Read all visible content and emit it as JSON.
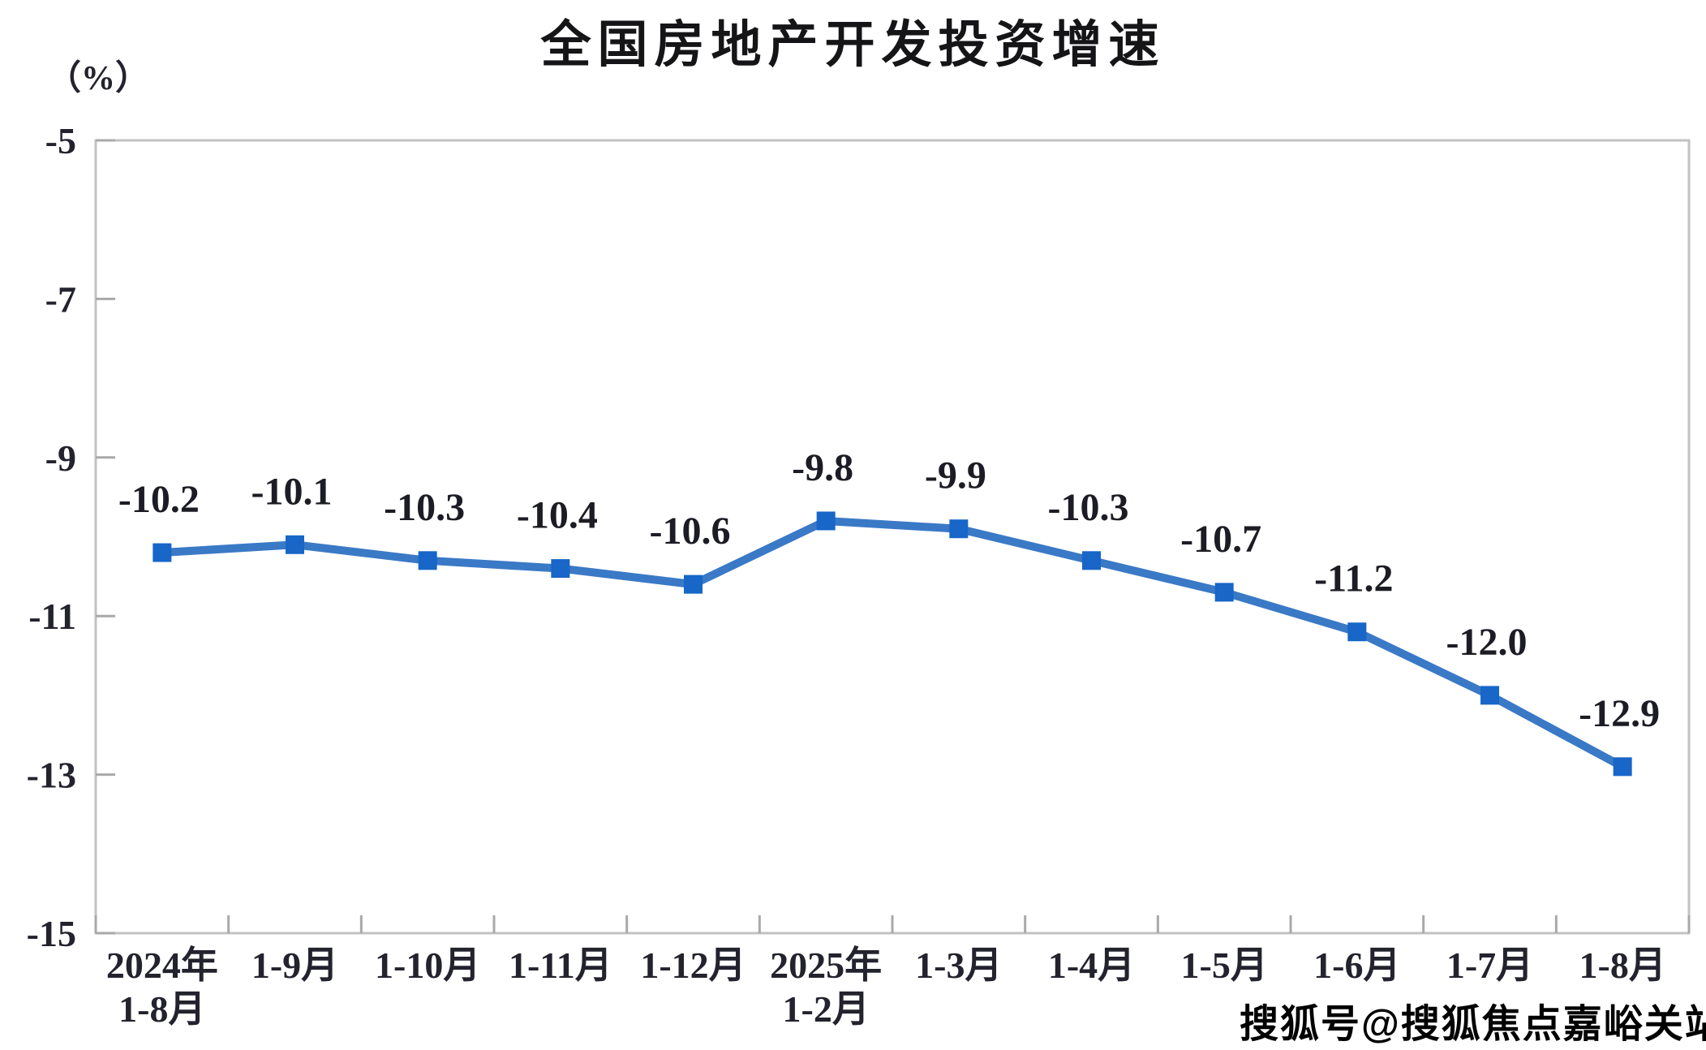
{
  "title": "全国房地产开发投资增速",
  "y_axis_unit_label": "（%）",
  "watermark": "搜狐号@搜狐焦点嘉峪关站",
  "chart_data": {
    "type": "line",
    "title": "全国房地产开发投资增速",
    "ylabel": "（%）",
    "categories": [
      [
        "2024年",
        "1-8月"
      ],
      [
        "1-9月"
      ],
      [
        "1-10月"
      ],
      [
        "1-11月"
      ],
      [
        "1-12月"
      ],
      [
        "2025年",
        "1-2月"
      ],
      [
        "1-3月"
      ],
      [
        "1-4月"
      ],
      [
        "1-5月"
      ],
      [
        "1-6月"
      ],
      [
        "1-7月"
      ],
      [
        "1-8月"
      ]
    ],
    "values": [
      -10.2,
      -10.1,
      -10.3,
      -10.4,
      -10.6,
      -9.8,
      -9.9,
      -10.3,
      -10.7,
      -11.2,
      -12.0,
      -12.9
    ],
    "data_labels": [
      "-10.2",
      "-10.1",
      "-10.3",
      "-10.4",
      "-10.6",
      "-9.8",
      "-9.9",
      "-10.3",
      "-10.7",
      "-11.2",
      "-12.0",
      "-12.9"
    ],
    "y_ticks": [
      -5,
      -7,
      -9,
      -11,
      -13,
      -15
    ],
    "y_tick_labels": [
      "-5",
      "-7",
      "-9",
      "-11",
      "-13",
      "-15"
    ],
    "ylim": [
      -15,
      -5
    ],
    "grid": false,
    "legend": "none",
    "line_color": "#3a79c6",
    "marker_color": "#1766c8",
    "marker_shape": "square",
    "axis_color": "#c2c2c2",
    "tick_color": "#a9a9a9",
    "text_color": "#23232e",
    "data_label_color": "#1c1c24"
  }
}
